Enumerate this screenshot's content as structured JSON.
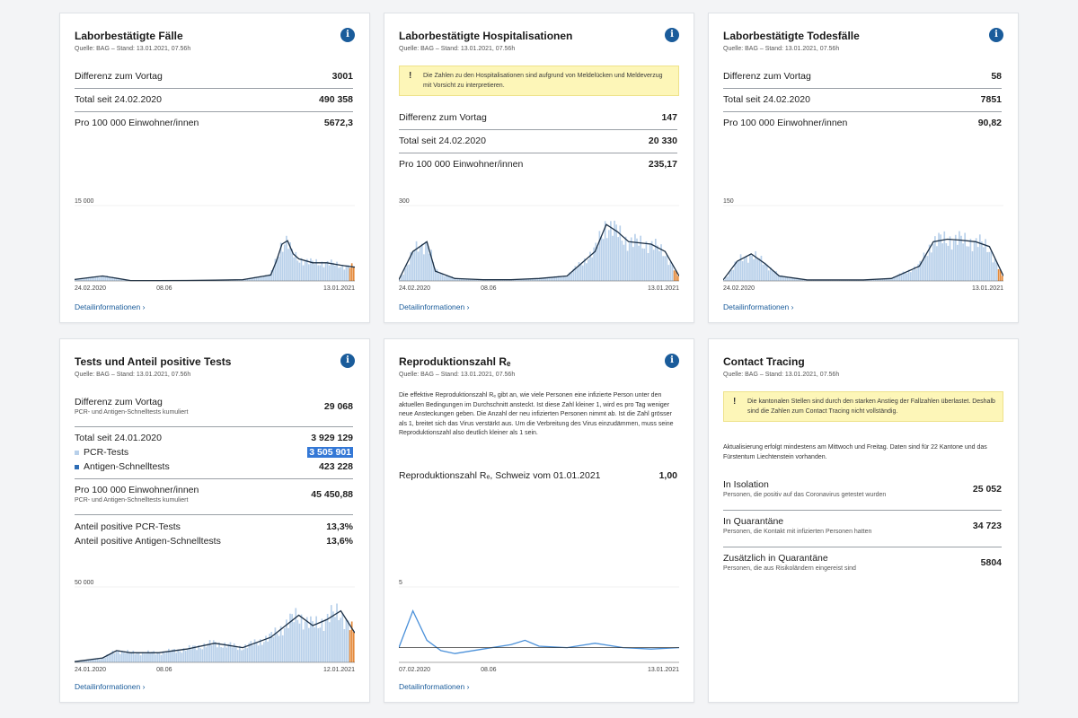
{
  "colors": {
    "accent": "#1a5c9b",
    "bar": "#b8d0ea",
    "line": "#1b2f45",
    "recent": "#e48a3b",
    "re_line": "#4a90d9",
    "warn_bg": "#fdf6b8"
  },
  "detail_link": "Detailinformationen",
  "cards": {
    "faelle": {
      "title": "Laborbestätigte Fälle",
      "source": "Quelle: BAG – Stand: 13.01.2021, 07.56h",
      "rows": [
        {
          "label": "Differenz zum Vortag",
          "value": "3001"
        },
        {
          "label": "Total seit 24.02.2020",
          "value": "490 358"
        },
        {
          "label": "Pro 100 000 Einwohner/innen",
          "value": "5672,3"
        }
      ]
    },
    "hosp": {
      "title": "Laborbestätigte Hospitalisationen",
      "source": "Quelle: BAG – Stand: 13.01.2021, 07.56h",
      "warning": "Die Zahlen zu den Hospitalisationen sind aufgrund von Meldelücken und Meldeverzug mit Vorsicht zu interpretieren.",
      "rows": [
        {
          "label": "Differenz zum Vortag",
          "value": "147"
        },
        {
          "label": "Total seit 24.02.2020",
          "value": "20 330"
        },
        {
          "label": "Pro 100 000 Einwohner/innen",
          "value": "235,17"
        }
      ]
    },
    "tod": {
      "title": "Laborbestätigte Todesfälle",
      "source": "Quelle: BAG – Stand: 13.01.2021, 07.56h",
      "rows": [
        {
          "label": "Differenz zum Vortag",
          "value": "58"
        },
        {
          "label": "Total seit 24.02.2020",
          "value": "7851"
        },
        {
          "label": "Pro 100 000 Einwohner/innen",
          "value": "90,82"
        }
      ]
    },
    "tests": {
      "title": "Tests und Anteil positive Tests",
      "source": "Quelle: BAG – Stand: 13.01.2021, 07.56h",
      "diff_label": "Differenz zum Vortag",
      "diff_sub": "PCR- und Antigen-Schnelltests kumuliert",
      "diff_value": "29 068",
      "total_label": "Total seit 24.01.2020",
      "total_value": "3 929 129",
      "pcr_label": "PCR-Tests",
      "pcr_value": "3 505 901",
      "antigen_label": "Antigen-Schnelltests",
      "antigen_value": "423 228",
      "pro_label": "Pro 100 000 Einwohner/innen",
      "pro_sub": "PCR- und Antigen-Schnelltests kumuliert",
      "pro_value": "45 450,88",
      "pos_pcr_label": "Anteil positive PCR-Tests",
      "pos_pcr_value": "13,3%",
      "pos_ag_label": "Anteil positive Antigen-Schnelltests",
      "pos_ag_value": "13,6%"
    },
    "repro": {
      "title": "Reproduktionszahl Rₑ",
      "source": "Quelle: BAG – Stand: 13.01.2021, 07.56h",
      "description": "Die effektive Reproduktionszahl Rₑ gibt an, wie viele Personen eine infizierte Person unter den aktuellen Bedingungen im Durchschnitt ansteckt. Ist diese Zahl kleiner 1, wird es pro Tag weniger neue Ansteckungen geben. Die Anzahl der neu infizierten Personen nimmt ab. Ist die Zahl grösser als 1, breitet sich das Virus verstärkt aus. Um die Verbreitung des Virus einzudämmen, muss seine Reproduktionszahl also deutlich kleiner als 1 sein.",
      "value_label": "Reproduktionszahl Rₑ, Schweiz vom 01.01.2021",
      "value": "1,00"
    },
    "contact": {
      "title": "Contact Tracing",
      "source": "Quelle: BAG – Stand: 13.01.2021, 07.56h",
      "warning": "Die kantonalen Stellen sind durch den starken Anstieg der Fallzahlen überlastet. Deshalb sind die Zahlen zum Contact Tracing nicht vollständig.",
      "note": "Aktualisierung erfolgt mindestens am Mittwoch und Freitag. Daten sind für 22 Kantone und das Fürstentum Liechtenstein vorhanden.",
      "rows": [
        {
          "label": "In Isolation",
          "sub": "Personen, die positiv auf das Coronavirus getestet wurden",
          "value": "25 052"
        },
        {
          "label": "In Quarantäne",
          "sub": "Personen, die Kontakt mit infizierten Personen hatten",
          "value": "34 723"
        },
        {
          "label": "Zusätzlich in Quarantäne",
          "sub": "Personen, die aus Risikoländern eingereist sind",
          "value": "5804"
        }
      ]
    }
  },
  "chart_data": [
    {
      "id": "faelle",
      "type": "bar",
      "ymax_label": "15 000",
      "ymax": 15000,
      "x_ticks": [
        "24.02.2020",
        "08.06",
        "13.01.2021"
      ],
      "x": [
        0,
        0.1,
        0.2,
        0.3,
        0.4,
        0.5,
        0.6,
        0.7,
        0.72,
        0.74,
        0.76,
        0.78,
        0.8,
        0.85,
        0.9,
        0.95,
        1.0
      ],
      "y": [
        300,
        1000,
        80,
        80,
        100,
        150,
        250,
        1200,
        4000,
        7500,
        8200,
        5500,
        4500,
        3700,
        3700,
        3200,
        2800
      ]
    },
    {
      "id": "hosp",
      "type": "bar",
      "ymax_label": "300",
      "ymax": 300,
      "x_ticks": [
        "24.02.2020",
        "08.06",
        "13.01.2021"
      ],
      "x": [
        0,
        0.05,
        0.1,
        0.13,
        0.2,
        0.3,
        0.4,
        0.5,
        0.6,
        0.7,
        0.74,
        0.78,
        0.82,
        0.9,
        0.95,
        1.0
      ],
      "y": [
        5,
        120,
        160,
        40,
        10,
        5,
        5,
        10,
        20,
        120,
        230,
        200,
        160,
        150,
        120,
        20
      ]
    },
    {
      "id": "tod",
      "type": "bar",
      "ymax_label": "150",
      "ymax": 150,
      "x_ticks": [
        "24.02.2020",
        "13.01.2021"
      ],
      "x": [
        0,
        0.05,
        0.1,
        0.15,
        0.2,
        0.3,
        0.4,
        0.5,
        0.6,
        0.7,
        0.75,
        0.8,
        0.85,
        0.9,
        0.95,
        1.0
      ],
      "y": [
        2,
        40,
        55,
        35,
        10,
        2,
        2,
        2,
        5,
        30,
        80,
        85,
        83,
        80,
        70,
        10
      ]
    },
    {
      "id": "tests",
      "type": "bar",
      "ymax_label": "50 000",
      "ymax": 50000,
      "x_ticks": [
        "24.01.2020",
        "08.06",
        "12.01.2021"
      ],
      "x": [
        0,
        0.1,
        0.15,
        0.2,
        0.3,
        0.4,
        0.5,
        0.6,
        0.7,
        0.8,
        0.85,
        0.9,
        0.95,
        1.0
      ],
      "y": [
        500,
        3000,
        8000,
        6500,
        6500,
        9000,
        13000,
        10000,
        17000,
        32000,
        25000,
        29000,
        35000,
        20000
      ]
    },
    {
      "id": "repro",
      "type": "line",
      "ymax_label": "5",
      "ymax": 5,
      "x_ticks": [
        "07.02.2020",
        "08.06",
        "13.01.2021"
      ],
      "x": [
        0,
        0.05,
        0.1,
        0.15,
        0.2,
        0.3,
        0.4,
        0.45,
        0.5,
        0.6,
        0.7,
        0.8,
        0.9,
        1.0
      ],
      "y": [
        1,
        3.5,
        1.5,
        0.8,
        0.6,
        0.9,
        1.2,
        1.5,
        1.1,
        1.0,
        1.3,
        1.0,
        0.9,
        1.0
      ]
    }
  ]
}
